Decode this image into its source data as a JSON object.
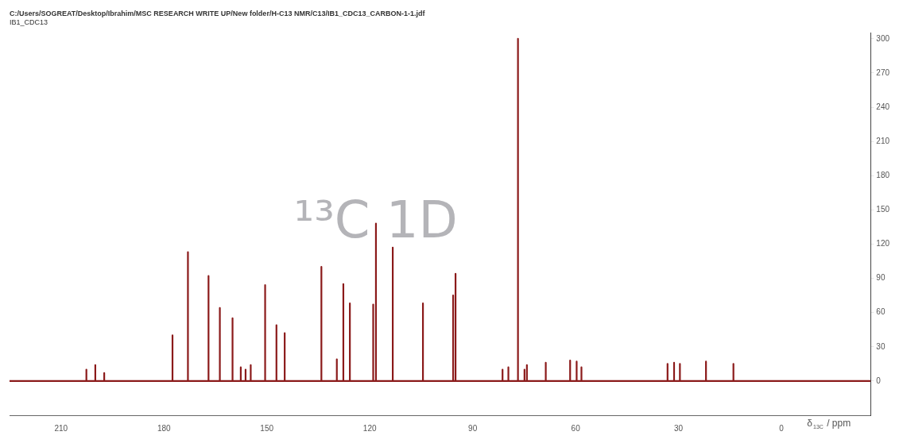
{
  "chart_data": {
    "type": "line",
    "title": "C:/Users/SOGREAT/Desktop/Ibrahim/MSC RESEARCH WRITE UP/New folder/H-C13 NMR/C13/IB1_CDC13_CARBON-1-1.jdf",
    "subtitle": "IB1_CDC13",
    "xlabel": "δ$_{13C}$ / ppm",
    "annotations": [
      "¹³C 1D"
    ],
    "series": [
      {
        "color": "#8b1a1a",
        "x": [
          225,
          202.6,
          202.6,
          202.6,
          200,
          200,
          200,
          197.4,
          197.4,
          197.4,
          177.5,
          177.5,
          177.5,
          173,
          173,
          173,
          167,
          167,
          167,
          163.7,
          163.7,
          163.7,
          160,
          160,
          160,
          157.6,
          157.6,
          157.6,
          156.2,
          156.2,
          156.2,
          154.7,
          154.7,
          154.7,
          150.5,
          150.5,
          150.5,
          147.2,
          147.2,
          147.2,
          144.8,
          144.8,
          144.8,
          134.1,
          134.1,
          134.1,
          129.6,
          129.6,
          129.6,
          127.7,
          127.7,
          127.7,
          125.8,
          125.8,
          125.8,
          119,
          119,
          119,
          118.2,
          118.2,
          118.2,
          113.3,
          113.3,
          113.3,
          104.5,
          104.5,
          104.5,
          95.7,
          95.7,
          95.7,
          95,
          95,
          95,
          81.3,
          81.3,
          81.3,
          79.6,
          79.6,
          79.6,
          76.8,
          76.8,
          76.8,
          74.9,
          74.9,
          74.9,
          74.2,
          74.2,
          74.2,
          68.7,
          68.7,
          68.7,
          61.6,
          61.6,
          61.6,
          59.7,
          59.7,
          59.7,
          58.3,
          58.3,
          58.3,
          33.2,
          33.2,
          33.2,
          31.3,
          31.3,
          31.3,
          29.6,
          29.6,
          29.6,
          22,
          22,
          22,
          14,
          14,
          14,
          -26
        ],
        "values": [
          0,
          0,
          10,
          0,
          0,
          14,
          0,
          0,
          7,
          0,
          0,
          40,
          0,
          0,
          113,
          0,
          0,
          92,
          0,
          0,
          64,
          0,
          0,
          55,
          0,
          0,
          12,
          0,
          0,
          10,
          0,
          0,
          14,
          0,
          0,
          84,
          0,
          0,
          49,
          0,
          0,
          42,
          0,
          0,
          100,
          0,
          0,
          19,
          0,
          0,
          85,
          0,
          0,
          68,
          0,
          0,
          67,
          0,
          0,
          138,
          0,
          0,
          117,
          0,
          0,
          68,
          0,
          0,
          75,
          0,
          0,
          94,
          0,
          0,
          10,
          0,
          0,
          12,
          0,
          0,
          300,
          0,
          0,
          10,
          0,
          0,
          14,
          0,
          0,
          16,
          0,
          0,
          18,
          0,
          0,
          17,
          0,
          0,
          12,
          0,
          0,
          15,
          0,
          0,
          16,
          0,
          0,
          15,
          0,
          0,
          17,
          0,
          0,
          15,
          0,
          0
        ]
      }
    ],
    "xlim": [
      225,
      -26
    ],
    "xticks": [
      210,
      180,
      150,
      120,
      90,
      60,
      30,
      0
    ],
    "ylim": [
      -30,
      305
    ],
    "yticks": [
      0,
      30,
      60,
      90,
      120,
      150,
      180,
      210,
      240,
      270,
      300
    ],
    "grid": false,
    "legend": false,
    "marker": "none",
    "line_style": "solid"
  }
}
